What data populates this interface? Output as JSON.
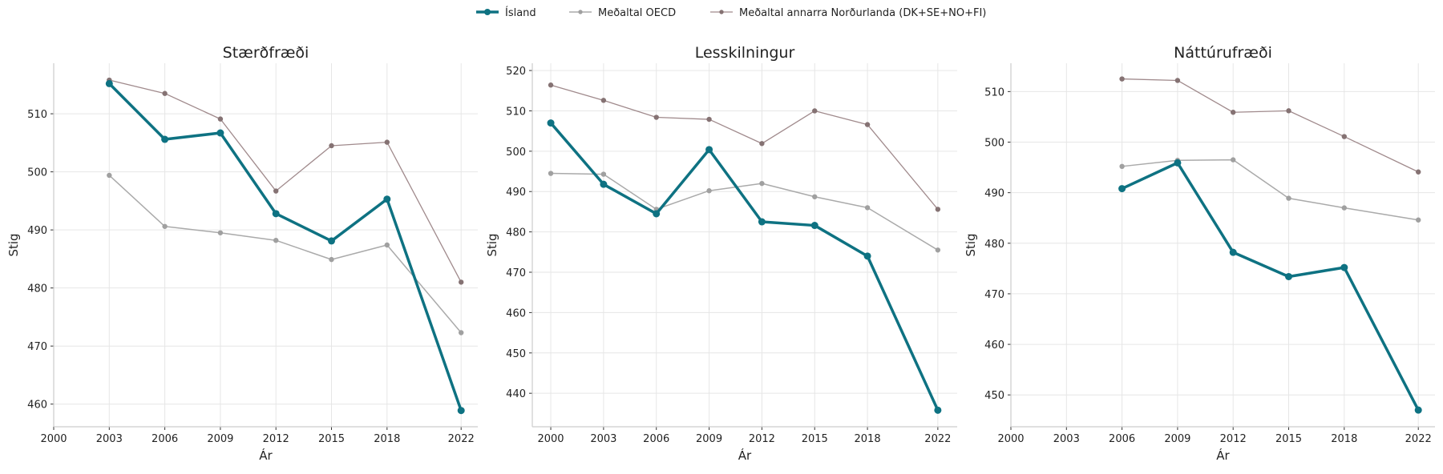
{
  "legend": {
    "position": "top-center",
    "items": [
      {
        "label": "Ísland",
        "color": "#0e7282"
      },
      {
        "label": "Meðaltal OECD",
        "color": "#aaaaaa"
      },
      {
        "label": "Meðaltal annarra Norðurlanda (DK+SE+NO+FI)",
        "color": "#a08a8c"
      }
    ]
  },
  "chart_data": [
    {
      "type": "line",
      "title": "Stærðfræði",
      "xlabel": "Ár",
      "ylabel": "Stig",
      "xlim": [
        2000,
        2022.9
      ],
      "ylim": [
        456.1,
        518.7
      ],
      "xticks": [
        2000,
        2003,
        2006,
        2009,
        2012,
        2015,
        2018,
        2022
      ],
      "yticks": [
        460,
        470,
        480,
        490,
        500,
        510
      ],
      "grid": true,
      "series": [
        {
          "name": "Ísland",
          "x": [
            2003,
            2006,
            2009,
            2012,
            2015,
            2018,
            2022
          ],
          "values": [
            515.2,
            505.6,
            506.7,
            492.8,
            488.1,
            495.3,
            458.9
          ]
        },
        {
          "name": "Meðaltal OECD",
          "x": [
            2003,
            2006,
            2009,
            2012,
            2015,
            2018,
            2022
          ],
          "values": [
            499.4,
            490.6,
            489.5,
            488.2,
            484.9,
            487.4,
            472.3
          ]
        },
        {
          "name": "Meðaltal annarra Norðurlanda (DK+SE+NO+FI)",
          "x": [
            2003,
            2006,
            2009,
            2012,
            2015,
            2018,
            2022
          ],
          "values": [
            515.8,
            513.5,
            509.1,
            496.7,
            504.5,
            505.1,
            481.0
          ]
        }
      ]
    },
    {
      "type": "line",
      "title": "Lesskilningur",
      "xlabel": "Ár",
      "ylabel": "Stig",
      "xlim": [
        1998.95,
        2023.1
      ],
      "ylim": [
        431.7,
        521.8
      ],
      "xticks": [
        2000,
        2003,
        2006,
        2009,
        2012,
        2015,
        2018,
        2022
      ],
      "yticks": [
        440,
        450,
        460,
        470,
        480,
        490,
        500,
        510,
        520
      ],
      "grid": true,
      "series": [
        {
          "name": "Ísland",
          "x": [
            2000,
            2003,
            2006,
            2009,
            2012,
            2015,
            2018,
            2022
          ],
          "values": [
            507.0,
            491.8,
            484.5,
            500.4,
            482.5,
            481.6,
            474.0,
            435.8
          ]
        },
        {
          "name": "Meðaltal OECD",
          "x": [
            2000,
            2003,
            2006,
            2009,
            2012,
            2015,
            2018,
            2022
          ],
          "values": [
            494.5,
            494.3,
            485.6,
            490.2,
            492.0,
            488.7,
            486.0,
            475.5
          ]
        },
        {
          "name": "Meðaltal annarra Norðurlanda (DK+SE+NO+FI)",
          "x": [
            2000,
            2003,
            2006,
            2009,
            2012,
            2015,
            2018,
            2022
          ],
          "values": [
            516.4,
            512.6,
            508.4,
            507.9,
            501.9,
            510.0,
            506.6,
            485.6
          ]
        }
      ]
    },
    {
      "type": "line",
      "title": "Náttúrufræði",
      "xlabel": "Ár",
      "ylabel": "Stig",
      "xlim": [
        2000,
        2022.9
      ],
      "ylim": [
        443.7,
        515.6
      ],
      "xticks": [
        2000,
        2003,
        2006,
        2009,
        2012,
        2015,
        2018,
        2022
      ],
      "yticks": [
        450,
        460,
        470,
        480,
        490,
        500,
        510
      ],
      "grid": true,
      "series": [
        {
          "name": "Ísland",
          "x": [
            2006,
            2009,
            2012,
            2015,
            2018,
            2022
          ],
          "values": [
            490.8,
            495.9,
            478.2,
            473.4,
            475.2,
            447.0
          ]
        },
        {
          "name": "Meðaltal OECD",
          "x": [
            2006,
            2009,
            2012,
            2015,
            2018,
            2022
          ],
          "values": [
            495.2,
            496.4,
            496.5,
            488.9,
            487.0,
            484.6
          ]
        },
        {
          "name": "Meðaltal annarra Norðurlanda (DK+SE+NO+FI)",
          "x": [
            2006,
            2009,
            2012,
            2015,
            2018,
            2022
          ],
          "values": [
            512.5,
            512.2,
            505.9,
            506.2,
            501.1,
            494.1
          ]
        }
      ]
    }
  ]
}
